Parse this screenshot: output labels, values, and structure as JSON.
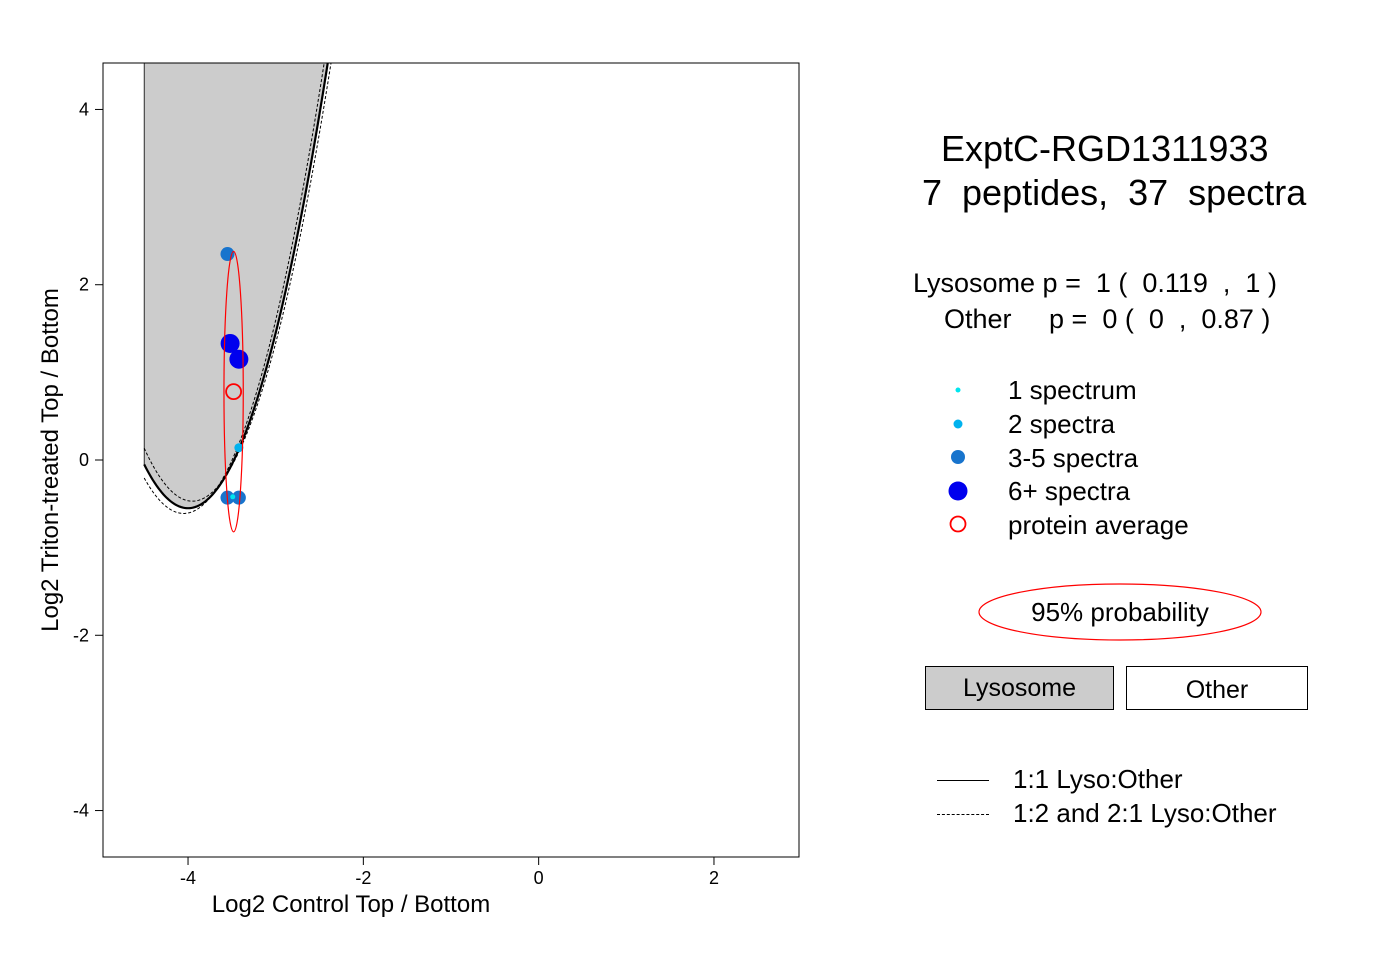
{
  "chart_data": {
    "type": "scatter",
    "title": "ExptC-RGD1311933",
    "subtitle": "7  peptides,  37  spectra",
    "xlabel": "Log2 Control Top / Bottom",
    "ylabel": "Log2 Triton-treated Top / Bottom",
    "xlim": [
      -4.97,
      2.97
    ],
    "ylim": [
      -4.53,
      4.53
    ],
    "x_ticks": [
      -4,
      -2,
      0,
      2
    ],
    "y_ticks": [
      -4,
      -2,
      0,
      2,
      4
    ],
    "grid": false,
    "points": [
      {
        "x": -3.55,
        "y": 2.35,
        "spectra_class": "3-5 spectra"
      },
      {
        "x": -3.52,
        "y": 1.33,
        "spectra_class": "6+ spectra"
      },
      {
        "x": -3.42,
        "y": 1.15,
        "spectra_class": "6+ spectra"
      },
      {
        "x": -3.42,
        "y": 0.14,
        "spectra_class": "2 spectra"
      },
      {
        "x": -3.55,
        "y": -0.43,
        "spectra_class": "3-5 spectra"
      },
      {
        "x": -3.42,
        "y": -0.43,
        "spectra_class": "3-5 spectra"
      },
      {
        "x": -3.49,
        "y": -0.42,
        "spectra_class": "1 spectrum"
      }
    ],
    "protein_average": {
      "x": -3.48,
      "y": 0.78
    },
    "confidence_ellipse": {
      "center_x": -3.48,
      "center_y": 0.78,
      "x_radius": 0.11,
      "y_radius": 1.6,
      "level": "95% probability"
    },
    "boundary_curves": {
      "one_to_one": {
        "vertex_x": -4.0,
        "vertex_y": -0.55,
        "curvature": 2.0
      },
      "one_to_two": {
        "vertex_x": -4.05,
        "vertex_y": -0.61,
        "curvature": 2.0
      },
      "two_to_one": {
        "vertex_x": -3.95,
        "vertex_y": -0.47,
        "curvature": 2.0
      },
      "x_start": -4.5
    },
    "region_fill": "#cccccc"
  },
  "stats": {
    "lysosome_line": "Lysosome p =  1 (  0.119  ,  1 )",
    "other_line": "Other     p =  0 (  0  ,  0.87 )"
  },
  "legend": {
    "items": [
      {
        "label": "1 spectrum",
        "color": "#00e5ee",
        "size": "tiny"
      },
      {
        "label": "2 spectra",
        "color": "#00b2ee",
        "size": "small"
      },
      {
        "label": "3-5 spectra",
        "color": "#1874cd",
        "size": "medium"
      },
      {
        "label": "6+ spectra",
        "color": "#0000ee",
        "size": "large"
      },
      {
        "label": "protein average",
        "color": "#ff0000",
        "size": "ring"
      }
    ],
    "probability_label": "95% probability",
    "regions": {
      "lysosome": "Lysosome",
      "other": "Other"
    },
    "lines": {
      "solid": "1:1 Lyso:Other",
      "dashed": "1:2 and 2:1 Lyso:Other"
    }
  },
  "colors": {
    "tiny": "#00e5ee",
    "small": "#00b2ee",
    "medium": "#1874cd",
    "large": "#0000ee",
    "average": "#ff0000",
    "region": "#cccccc"
  }
}
